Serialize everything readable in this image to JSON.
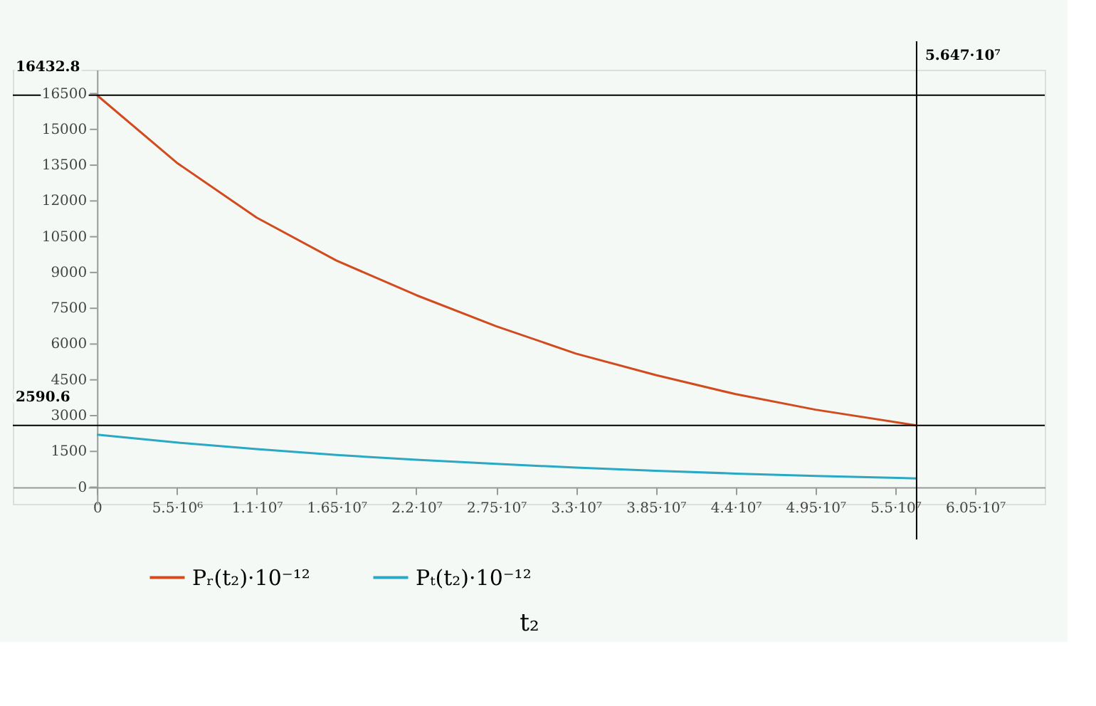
{
  "chart_data": {
    "type": "line",
    "xlabel": "t₂",
    "legend": "bottom",
    "grid": false,
    "marker": "none",
    "line_style": "solid",
    "xlim": [
      -5800000,
      65300000
    ],
    "ylim": [
      -700,
      17500
    ],
    "xticks": [
      0,
      {
        "value": 5500000,
        "label": "5.5·10⁶"
      },
      {
        "value": 11000000,
        "label": "1.1·10⁷"
      },
      {
        "value": 16500000,
        "label": "1.65·10⁷"
      },
      {
        "value": 22000000,
        "label": "2.2·10⁷"
      },
      {
        "value": 27500000,
        "label": "2.75·10⁷"
      },
      {
        "value": 33000000,
        "label": "3.3·10⁷"
      },
      {
        "value": 38500000,
        "label": "3.85·10⁷"
      },
      {
        "value": 44000000,
        "label": "4.4·10⁷"
      },
      {
        "value": 49500000,
        "label": "4.95·10⁷"
      },
      {
        "value": 55000000,
        "label": "5.5·10⁷"
      },
      {
        "value": 60500000,
        "label": "6.05·10⁷"
      }
    ],
    "yticks": [
      0,
      1500,
      3000,
      4500,
      6000,
      7500,
      9000,
      10500,
      12000,
      13500,
      15000,
      16500
    ],
    "x": [
      0,
      5500000,
      11000000,
      16500000,
      22000000,
      27500000,
      33000000,
      38500000,
      44000000,
      49500000,
      56470000
    ],
    "series": [
      {
        "name": "Pᵣ(t₂)·10⁻¹²",
        "color": "#d24b1e",
        "values": [
          16432.8,
          13600,
          11300,
          9500,
          8050,
          6750,
          5600,
          4700,
          3900,
          3250,
          2590.6
        ]
      },
      {
        "name": "Pₜ(t₂)·10⁻¹²",
        "color": "#2aa8c4",
        "values": [
          2200,
          1870,
          1600,
          1350,
          1150,
          980,
          820,
          690,
          570,
          470,
          370
        ]
      }
    ],
    "ref_lines": [
      {
        "axis": "y",
        "value": 16432.8,
        "label": "16432.8",
        "color": "#000000"
      },
      {
        "axis": "y",
        "value": 2590.6,
        "label": "2590.6",
        "color": "#000000"
      },
      {
        "axis": "x",
        "value": 56470000,
        "label": "5.647·10⁷",
        "color": "#000000"
      }
    ]
  }
}
